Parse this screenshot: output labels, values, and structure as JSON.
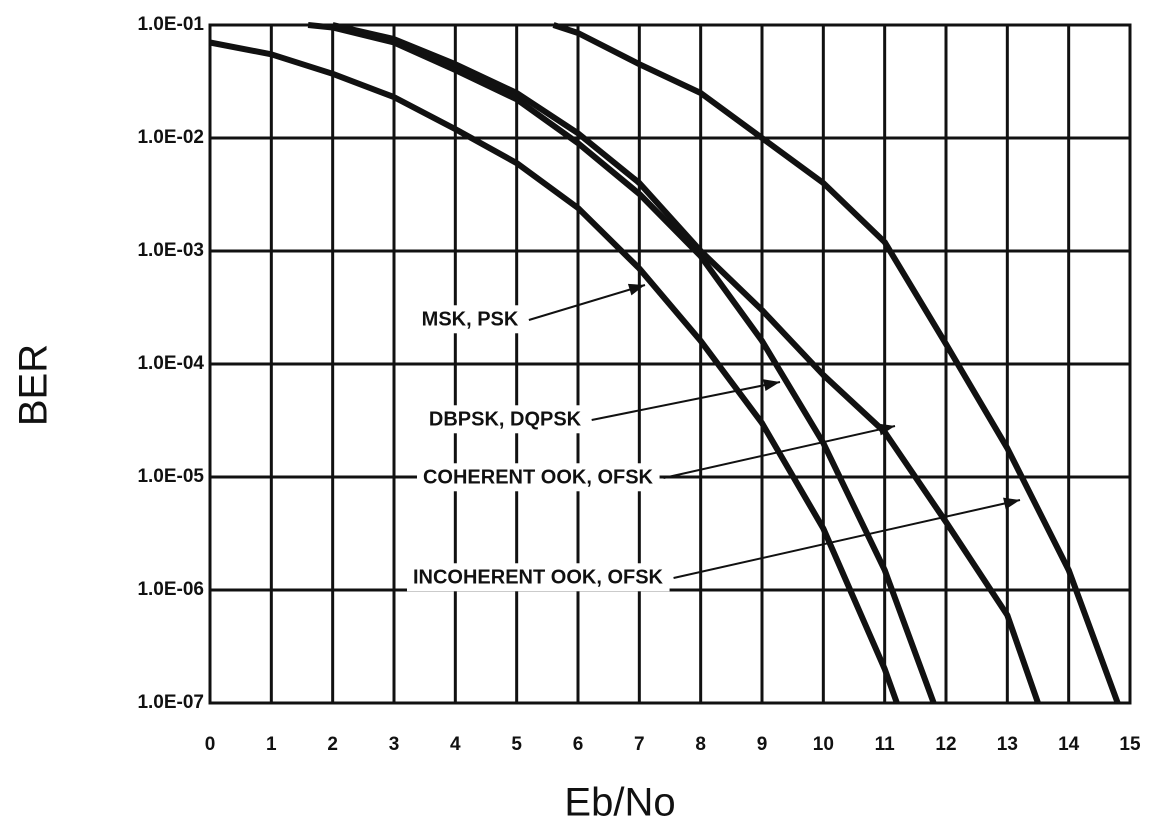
{
  "chart_data": {
    "type": "line",
    "x_label": "Eb/No",
    "y_label": "BER",
    "log_y": true,
    "grid": true,
    "color": "#111111",
    "xlim": [
      0,
      15
    ],
    "xticks": [
      0,
      1,
      2,
      3,
      4,
      5,
      6,
      7,
      8,
      9,
      10,
      11,
      12,
      13,
      14,
      15
    ],
    "ylim": [
      1e-07,
      0.1
    ],
    "yticks": [
      {
        "value": 1e-07,
        "label": "1.0E-07"
      },
      {
        "value": 1e-06,
        "label": "1.0E-06"
      },
      {
        "value": 1e-05,
        "label": "1.0E-05"
      },
      {
        "value": 0.0001,
        "label": "1.0E-04"
      },
      {
        "value": 0.001,
        "label": "1.0E-03"
      },
      {
        "value": 0.01,
        "label": "1.0E-02"
      },
      {
        "value": 0.1,
        "label": "1.0E-01"
      }
    ],
    "series": [
      {
        "name": "MSK, PSK",
        "x": [
          0,
          1,
          2,
          3,
          4,
          5,
          6,
          7,
          8,
          9,
          10,
          11,
          11.2
        ],
        "values": [
          0.07,
          0.055,
          0.037,
          0.023,
          0.012,
          0.006,
          0.0024,
          0.0007,
          0.00016,
          3e-05,
          3.5e-06,
          2e-07,
          1e-07
        ]
      },
      {
        "name": "DBPSK, DQPSK",
        "x": [
          1.6,
          2,
          3,
          4,
          5,
          6,
          7,
          8,
          9,
          10,
          11,
          11.8
        ],
        "values": [
          0.1,
          0.095,
          0.07,
          0.04,
          0.022,
          0.009,
          0.0032,
          0.0009,
          0.00016,
          2e-05,
          1.5e-06,
          1e-07
        ]
      },
      {
        "name": "COHERENT OOK, OFSK",
        "x": [
          2,
          3,
          4,
          5,
          6,
          7,
          8,
          9,
          10,
          11,
          12,
          13,
          13.5
        ],
        "values": [
          0.1,
          0.075,
          0.045,
          0.025,
          0.011,
          0.004,
          0.001,
          0.0003,
          8e-05,
          2.5e-05,
          4e-06,
          6e-07,
          1e-07
        ]
      },
      {
        "name": "INCOHERENT OOK, OFSK",
        "x": [
          5.6,
          6,
          7,
          8,
          9,
          10,
          11,
          12,
          13,
          14,
          14.8
        ],
        "values": [
          0.1,
          0.085,
          0.045,
          0.025,
          0.01,
          0.004,
          0.0012,
          0.00015,
          1.8e-05,
          1.5e-06,
          1e-07
        ]
      }
    ]
  }
}
